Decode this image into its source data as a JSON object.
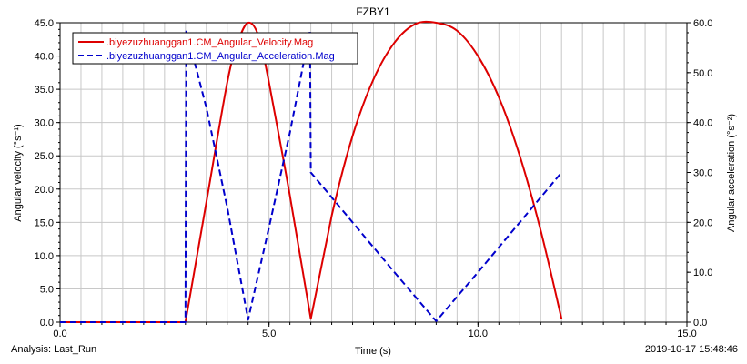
{
  "chart_data": {
    "type": "line",
    "title": "FZBY1",
    "xlabel": "Time (s)",
    "ylabel_left": "Angular velocity  (°s⁻¹)",
    "ylabel_right": "Angular acceleration  (°s⁻²)",
    "xlim": [
      0,
      15
    ],
    "ylim_left": [
      0,
      45
    ],
    "ylim_right": [
      0,
      60
    ],
    "x_ticks": [
      "0.0",
      "5.0",
      "10.0",
      "15.0"
    ],
    "y_left_ticks": [
      "0.0",
      "5.0",
      "10.0",
      "15.0",
      "20.0",
      "25.0",
      "30.0",
      "35.0",
      "40.0",
      "45.0"
    ],
    "y_right_ticks": [
      "0.0",
      "10.0",
      "20.0",
      "30.0",
      "40.0",
      "50.0",
      "60.0"
    ],
    "grid": true,
    "legend_position": "top-left",
    "series": [
      {
        "name": ".biyezuzhuanggan1.CM_Angular_Velocity.Mag",
        "axis": "left",
        "color": "#dd0000",
        "style": "solid",
        "x": [
          0.0,
          3.0,
          3.5,
          4.0,
          4.25,
          4.5,
          4.75,
          5.0,
          5.5,
          6.0,
          6.5,
          7.0,
          7.5,
          8.0,
          8.5,
          9.0,
          9.5,
          10.0,
          10.5,
          11.0,
          11.5,
          12.0
        ],
        "y": [
          0.0,
          0.0,
          18.0,
          36.0,
          42.0,
          45.0,
          43.0,
          36.0,
          19.0,
          0.5,
          16.0,
          28.0,
          36.5,
          42.0,
          44.8,
          45.0,
          43.8,
          40.0,
          33.8,
          25.0,
          13.8,
          0.5
        ]
      },
      {
        "name": ".biyezuzhuanggan1.CM_Angular_Acceleration.Mag",
        "axis": "right",
        "color": "#0000cc",
        "style": "dashed",
        "x": [
          0.0,
          3.0,
          3.02,
          3.5,
          4.0,
          4.5,
          5.0,
          5.5,
          5.98,
          6.0,
          7.0,
          8.0,
          9.0,
          10.0,
          11.0,
          12.0
        ],
        "y": [
          0.0,
          0.0,
          58.5,
          43.0,
          23.0,
          0.5,
          19.0,
          38.0,
          58.5,
          30.0,
          20.0,
          10.0,
          0.2,
          10.0,
          20.0,
          30.0
        ]
      }
    ]
  },
  "footer": {
    "analysis_label": "Analysis:  Last_Run",
    "timestamp": "2019-10-17 15:48:46"
  }
}
